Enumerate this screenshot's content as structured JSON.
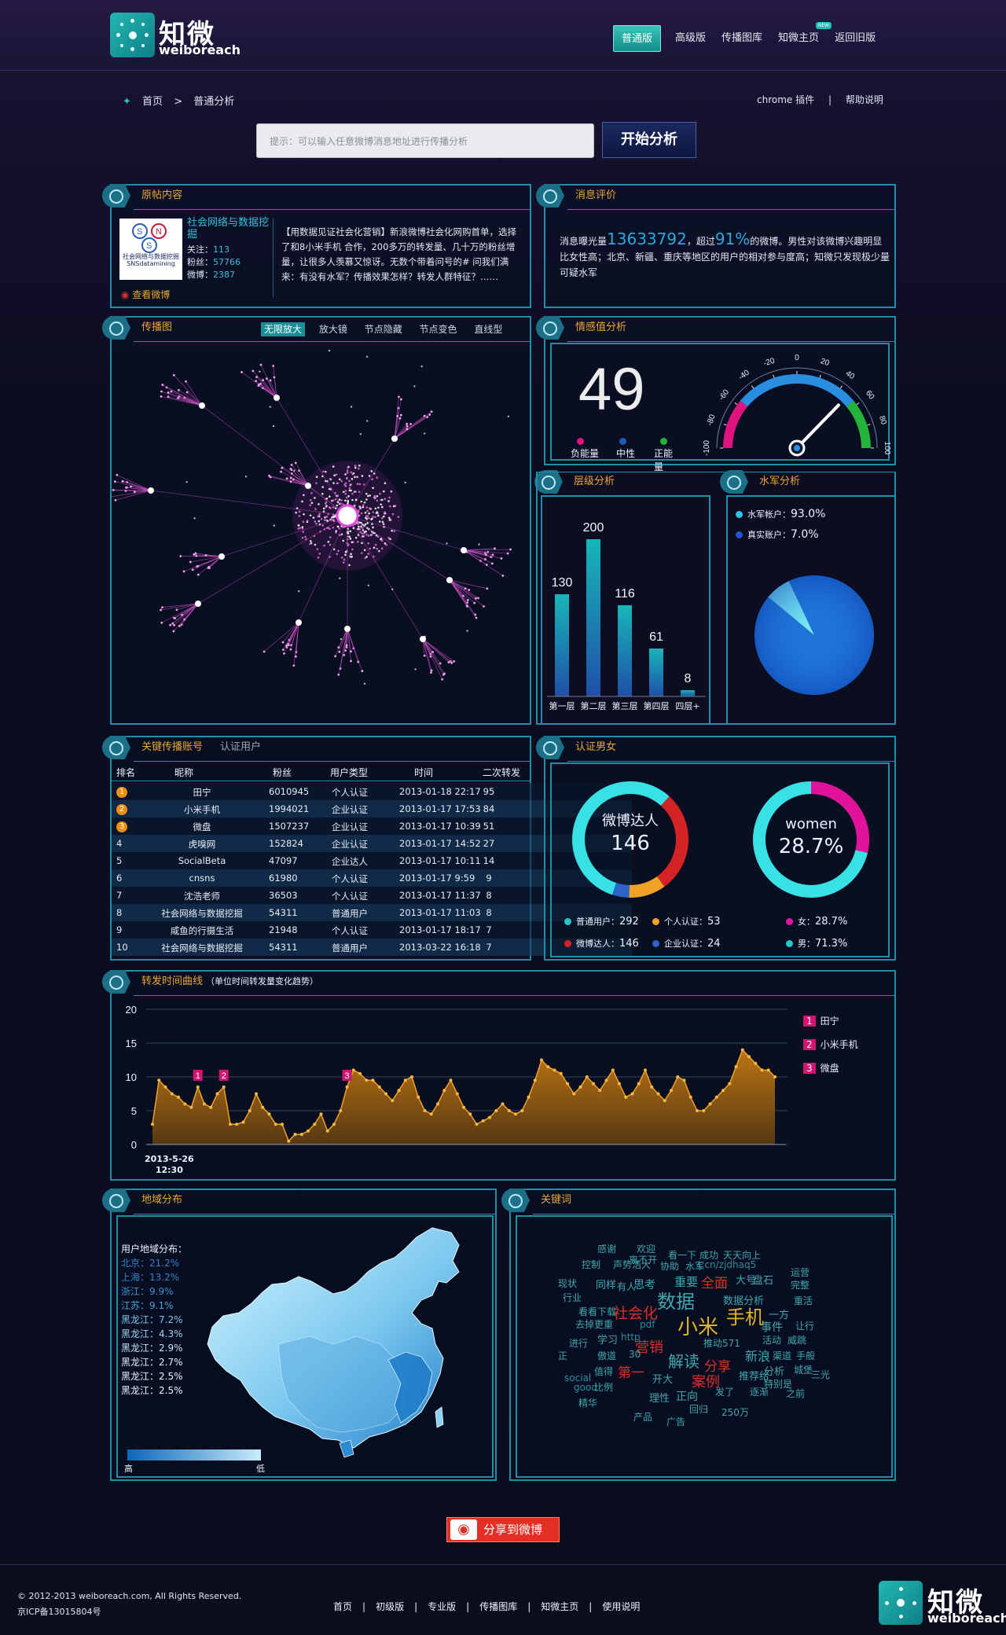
{
  "header": {
    "logo_cn": "知微",
    "logo_en": "weiboreach",
    "nav": [
      {
        "label": "普通版",
        "active": true
      },
      {
        "label": "高级版"
      },
      {
        "label": "传播图库"
      },
      {
        "label": "知微主页",
        "new": "NEW"
      },
      {
        "label": "返回旧版"
      }
    ]
  },
  "breadcrumb": {
    "home": "首页",
    "sep": ">",
    "current": "普通分析"
  },
  "toplinks": {
    "plugin": "chrome 插件",
    "sep": "|",
    "help": "帮助说明"
  },
  "search": {
    "placeholder": "提示：可以输入任意微博消息地址进行传播分析",
    "button": "开始分析"
  },
  "original": {
    "title": "原帖内容",
    "user": "社会网络与数据挖掘",
    "follow_label": "关注：",
    "follow": "113",
    "fans_label": "粉丝：",
    "fans": "57766",
    "weibo_label": "微博：",
    "weibo": "2387",
    "avatar_text": "社会网络与数据挖掘 SNSdatamining",
    "view": "查看微博",
    "text": "【用数据见证社会化营销】新浪微博社会化网购首单，选择了和8小米手机 合作，200多万的转发量、几十万的粉丝增量，让很多人羡慕又惊讶。无数个带着问号的# 问我们满来：有没有水军？传播效果怎样？转发人群特征？……"
  },
  "evaluation": {
    "title": "消息评价",
    "pre": "消息曝光量",
    "exposure": "13633792",
    "mid": "，超过",
    "pct": "91%",
    "post": "的微博。男性对该微博兴趣明显比女性高；北京、新疆、重庆等地区的用户的相对参与度高；知微只发现极少量可疑水军"
  },
  "graph": {
    "title": "传播图",
    "tools": [
      "无限放大",
      "放大镜",
      "节点隐藏",
      "节点变色",
      "直线型"
    ]
  },
  "emotion": {
    "title": "情感值分析",
    "value": "49",
    "legend": [
      {
        "label": "负能量",
        "color": "#e0137f"
      },
      {
        "label": "中性",
        "color": "#1c5ab8"
      },
      {
        "label": "正能量",
        "color": "#23b43a"
      }
    ],
    "gauge_ticks": [
      "-100",
      "-80",
      "-60",
      "-40",
      "-20",
      "0",
      "20",
      "40",
      "60",
      "80",
      "100"
    ]
  },
  "levels": {
    "title": "层级分析"
  },
  "water": {
    "title": "水军分析",
    "items": [
      {
        "label": "水军帐户：",
        "value": "93.0%",
        "color": "#33c3e6"
      },
      {
        "label": "真实账户：",
        "value": "7.0%",
        "color": "#1f56c9"
      }
    ]
  },
  "accounts": {
    "title": "关键传播账号",
    "tab2": "认证用户",
    "headers": [
      "排名",
      "昵称",
      "粉丝",
      "用户类型",
      "时间",
      "二次转发"
    ],
    "rows": [
      [
        "1",
        "田宁",
        "6010945",
        "个人认证",
        "2013-01-18 22:17",
        "95"
      ],
      [
        "2",
        "小米手机",
        "1994021",
        "企业认证",
        "2013-01-17 17:53",
        "84"
      ],
      [
        "3",
        "微盘",
        "1507237",
        "企业认证",
        "2013-01-17 10:39",
        "51"
      ],
      [
        "4",
        "虎嗅网",
        "152824",
        "企业认证",
        "2013-01-17 14:52",
        "27"
      ],
      [
        "5",
        "SocialBeta",
        "47097",
        "企业达人",
        "2013-01-17 10:11",
        "14"
      ],
      [
        "6",
        "cnsns",
        "61980",
        "个人认证",
        "2013-01-17 9:59",
        "9"
      ],
      [
        "7",
        "沈浩老师",
        "36503",
        "个人认证",
        "2013-01-17 11:37",
        "8"
      ],
      [
        "8",
        "社会网络与数据挖掘",
        "54311",
        "普通用户",
        "2013-01-17 11:03",
        "8"
      ],
      [
        "9",
        "咸鱼的行摄生活",
        "21948",
        "个人认证",
        "2013-01-17 18:17",
        "7"
      ],
      [
        "10",
        "社会网络与数据挖掘",
        "54311",
        "普通用户",
        "2013-03-22 16:18",
        "7"
      ]
    ]
  },
  "gender": {
    "title": "认证男女",
    "donut1_label": "微博达人",
    "donut1_value": "146",
    "donut2_label": "women",
    "donut2_value": "28.7%",
    "legend": [
      {
        "label": "普通用户：",
        "value": "292",
        "color": "#26c6c9"
      },
      {
        "label": "个人认证：",
        "value": "53",
        "color": "#f0a128"
      },
      {
        "label": "微博达人：",
        "value": "146",
        "color": "#d42325"
      },
      {
        "label": "企业认证：",
        "value": "24",
        "color": "#2b63c9"
      },
      {
        "label": "女：",
        "value": "28.7%",
        "color": "#e0139a"
      },
      {
        "label": "男：",
        "value": "71.3%",
        "color": "#26c6c9"
      }
    ]
  },
  "curve": {
    "title": "转发时间曲线",
    "subtitle": "（单位时间转发量变化趋势）",
    "xstart_date": "2013-5-26",
    "xstart_time": "12:30",
    "legend": [
      {
        "n": "1",
        "label": "田宁"
      },
      {
        "n": "2",
        "label": "小米手机"
      },
      {
        "n": "3",
        "label": "微盘"
      }
    ]
  },
  "region": {
    "title": "地域分布",
    "heading": "用户地域分布：",
    "items": [
      "北京：21.2%",
      "上海：13.2%",
      "浙江：9.9%",
      "江苏：9.1%",
      "黑龙江：7.2%",
      "黑龙江：4.3%",
      "黑龙江：2.9%",
      "黑龙江：2.7%",
      "黑龙江：2.5%",
      "黑龙江：2.5%"
    ],
    "high": "高",
    "low": "低"
  },
  "keywords": {
    "title": "关键词",
    "words": [
      {
        "t": "感谢",
        "c": "#3fa7ad",
        "s": 12
      },
      {
        "t": "欢迎",
        "c": "#3fa7ad",
        "s": 12
      },
      {
        "t": "看一下",
        "c": "#3fa7ad",
        "s": 12
      },
      {
        "t": "成功",
        "c": "#3fa7ad",
        "s": 12
      },
      {
        "t": "天天向上",
        "c": "#3fa7ad",
        "s": 12
      },
      {
        "t": "离不开",
        "c": "#3fa7ad",
        "s": 12
      },
      {
        "t": "控制",
        "c": "#3fa7ad",
        "s": 12
      },
      {
        "t": "声势浩大",
        "c": "#3fa7ad",
        "s": 12
      },
      {
        "t": "协助",
        "c": "#3fa7ad",
        "s": 12
      },
      {
        "t": "水军",
        "c": "#3fa7ad",
        "s": 12
      },
      {
        "t": "t.cn/zjdhaq5",
        "c": "#2c8f9b",
        "s": 12
      },
      {
        "t": "现状",
        "c": "#3fa7ad",
        "s": 12
      },
      {
        "t": "同样",
        "c": "#3fa7ad",
        "s": 13
      },
      {
        "t": "有人",
        "c": "#3fa7ad",
        "s": 12
      },
      {
        "t": "思考",
        "c": "#3fa7ad",
        "s": 14
      },
      {
        "t": "重要",
        "c": "#3fa7ad",
        "s": 15
      },
      {
        "t": "全面",
        "c": "#d8312a",
        "s": 17
      },
      {
        "t": "大号",
        "c": "#3fa7ad",
        "s": 13
      },
      {
        "t": "盘石",
        "c": "#3fa7ad",
        "s": 13
      },
      {
        "t": "运营",
        "c": "#3fa7ad",
        "s": 12
      },
      {
        "t": "完整",
        "c": "#3fa7ad",
        "s": 12
      },
      {
        "t": "行业",
        "c": "#3fa7ad",
        "s": 12
      },
      {
        "t": "数据",
        "c": "#3fa7ad",
        "s": 24
      },
      {
        "t": "数据分析",
        "c": "#3fa7ad",
        "s": 13
      },
      {
        "t": "重活",
        "c": "#3fa7ad",
        "s": 12
      },
      {
        "t": "看看",
        "c": "#3fa7ad",
        "s": 12
      },
      {
        "t": "下载",
        "c": "#3fa7ad",
        "s": 12
      },
      {
        "t": "社会化",
        "c": "#d8312a",
        "s": 19
      },
      {
        "t": "手机",
        "c": "#e2b325",
        "s": 24
      },
      {
        "t": "一方",
        "c": "#3fa7ad",
        "s": 13
      },
      {
        "t": "去掉",
        "c": "#3fa7ad",
        "s": 12
      },
      {
        "t": "更重",
        "c": "#3fa7ad",
        "s": 12
      },
      {
        "t": "pdf",
        "c": "#2c8f9b",
        "s": 12
      },
      {
        "t": "小米",
        "c": "#e2b325",
        "s": 26
      },
      {
        "t": "事件",
        "c": "#3fa7ad",
        "s": 14
      },
      {
        "t": "让行",
        "c": "#3fa7ad",
        "s": 12
      },
      {
        "t": "学习",
        "c": "#3fa7ad",
        "s": 13
      },
      {
        "t": "http",
        "c": "#2c8f9b",
        "s": 12
      },
      {
        "t": "推动571",
        "c": "#3fa7ad",
        "s": 12
      },
      {
        "t": "活动",
        "c": "#3fa7ad",
        "s": 12
      },
      {
        "t": "威跳",
        "c": "#3fa7ad",
        "s": 12
      },
      {
        "t": "进行",
        "c": "#3fa7ad",
        "s": 12
      },
      {
        "t": "营销",
        "c": "#d8312a",
        "s": 18
      },
      {
        "t": "傲道",
        "c": "#3fa7ad",
        "s": 12
      },
      {
        "t": "30",
        "c": "#3fa7ad",
        "s": 12
      },
      {
        "t": "解读",
        "c": "#3fa7ad",
        "s": 20
      },
      {
        "t": "新浪",
        "c": "#3fa7ad",
        "s": 16
      },
      {
        "t": "渠道",
        "c": "#3fa7ad",
        "s": 12
      },
      {
        "t": "手般",
        "c": "#3fa7ad",
        "s": 12
      },
      {
        "t": "正",
        "c": "#3fa7ad",
        "s": 12
      },
      {
        "t": "值得",
        "c": "#3fa7ad",
        "s": 12
      },
      {
        "t": "第一",
        "c": "#d8312a",
        "s": 17
      },
      {
        "t": "分享",
        "c": "#d8312a",
        "s": 17
      },
      {
        "t": "分析",
        "c": "#3fa7ad",
        "s": 13
      },
      {
        "t": "城堡",
        "c": "#3fa7ad",
        "s": 12
      },
      {
        "t": "三光",
        "c": "#3fa7ad",
        "s": 12
      },
      {
        "t": "social",
        "c": "#2c8f9b",
        "s": 12
      },
      {
        "t": "开大",
        "c": "#3fa7ad",
        "s": 13
      },
      {
        "t": "案例",
        "c": "#d8312a",
        "s": 18
      },
      {
        "t": "推荐给",
        "c": "#3fa7ad",
        "s": 13
      },
      {
        "t": "特别是",
        "c": "#3fa7ad",
        "s": 12
      },
      {
        "t": "good",
        "c": "#2c8f9b",
        "s": 12
      },
      {
        "t": "比例",
        "c": "#3fa7ad",
        "s": 12
      },
      {
        "t": "理性",
        "c": "#3fa7ad",
        "s": 13
      },
      {
        "t": "正向",
        "c": "#3fa7ad",
        "s": 14
      },
      {
        "t": "发了",
        "c": "#3fa7ad",
        "s": 12
      },
      {
        "t": "逐渐",
        "c": "#3fa7ad",
        "s": 12
      },
      {
        "t": "之前",
        "c": "#3fa7ad",
        "s": 12
      },
      {
        "t": "精华",
        "c": "#3fa7ad",
        "s": 12
      },
      {
        "t": "回归",
        "c": "#3fa7ad",
        "s": 12
      },
      {
        "t": "250万",
        "c": "#3fa7ad",
        "s": 12
      },
      {
        "t": "产品",
        "c": "#3fa7ad",
        "s": 12
      },
      {
        "t": "广告",
        "c": "#3fa7ad",
        "s": 12
      }
    ]
  },
  "share": {
    "label": "分享到微博"
  },
  "footer": {
    "copyright": "© 2012-2013 weiboreach.com,  All Rights Reserved.",
    "icp": "京ICP备13015804号",
    "links": [
      "首页",
      "初级版",
      "专业版",
      "传播图库",
      "知微主页",
      "使用说明"
    ],
    "sep": "|"
  },
  "chart_data": [
    {
      "type": "bar",
      "title": "层级分析",
      "categories": [
        "第一层",
        "第二层",
        "第三层",
        "第四层",
        "四层+"
      ],
      "values": [
        130,
        200,
        116,
        61,
        8
      ]
    },
    {
      "type": "pie",
      "title": "水军分析",
      "categories": [
        "水军帐户",
        "真实账户"
      ],
      "values": [
        93.0,
        7.0
      ],
      "colors": [
        "#2a8ee0",
        "#7cf0f4"
      ]
    },
    {
      "type": "pie",
      "title": "认证男女",
      "categories": [
        "普通用户",
        "个人认证",
        "微博达人",
        "企业认证"
      ],
      "values": [
        292,
        53,
        146,
        24
      ]
    },
    {
      "type": "pie",
      "title": "认证男女",
      "categories": [
        "女",
        "男"
      ],
      "values": [
        28.7,
        71.3
      ]
    },
    {
      "type": "area",
      "title": "转发时间曲线",
      "ylim": [
        0,
        20
      ],
      "yticks": [
        0,
        5,
        10,
        15,
        20
      ],
      "values": [
        3,
        9.5,
        8.5,
        7.5,
        7,
        6,
        5.5,
        8.5,
        6,
        5.5,
        7.5,
        8.5,
        3,
        3,
        3.3,
        5,
        7.5,
        5.5,
        4.5,
        3,
        3,
        0.5,
        1.5,
        1.5,
        2,
        3,
        4.5,
        2,
        3,
        5,
        8.5,
        11,
        10.5,
        9.5,
        9.5,
        8.5,
        7.5,
        6.5,
        8,
        9.5,
        10,
        7,
        5,
        4.5,
        6,
        8,
        9.5,
        7.5,
        5.5,
        4.5,
        3,
        3.5,
        4,
        5,
        6,
        5,
        4.5,
        5,
        7,
        9.5,
        12.5,
        11.5,
        11,
        10.5,
        9,
        7.5,
        8.5,
        10,
        9,
        8,
        9.5,
        11,
        9,
        7,
        7.5,
        9,
        11,
        8.5,
        7.5,
        6.5,
        8,
        10,
        9.5,
        7,
        5,
        5,
        6,
        7,
        8,
        9,
        11.5,
        14,
        13,
        12,
        11,
        11,
        10
      ]
    }
  ]
}
